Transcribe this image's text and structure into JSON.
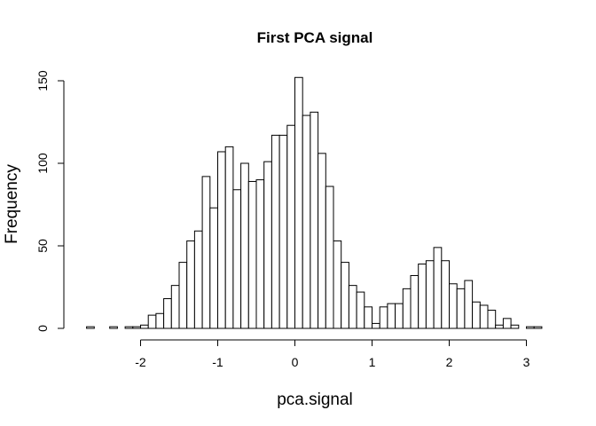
{
  "chart_data": {
    "type": "bar",
    "title": "First PCA signal",
    "xlabel": "pca.signal",
    "ylabel": "Frequency",
    "bin_width": 0.1,
    "x_start": -2.7,
    "x_ticks": [
      -2,
      -1,
      0,
      1,
      2,
      3
    ],
    "y_ticks": [
      0,
      50,
      100,
      150
    ],
    "xlim": [
      -2.7,
      3.2
    ],
    "ylim": [
      0,
      152
    ],
    "grid": false,
    "values": [
      1,
      0,
      0,
      1,
      0,
      1,
      1,
      2,
      8,
      9,
      18,
      26,
      40,
      53,
      59,
      92,
      73,
      107,
      110,
      84,
      100,
      89,
      90,
      101,
      117,
      117,
      123,
      152,
      129,
      131,
      106,
      86,
      53,
      40,
      26,
      22,
      13,
      3,
      13,
      15,
      15,
      24,
      32,
      39,
      41,
      49,
      41,
      27,
      24,
      29,
      16,
      14,
      11,
      2,
      6,
      2,
      0,
      1,
      1
    ],
    "series": [
      {
        "values": [
          1,
          0,
          0,
          1,
          0,
          1,
          1,
          2,
          8,
          9,
          18,
          26,
          40,
          53,
          59,
          92,
          73,
          107,
          110,
          84,
          100,
          89,
          90,
          101,
          117,
          117,
          123,
          152,
          129,
          131,
          106,
          86,
          53,
          40,
          26,
          22,
          13,
          3,
          13,
          15,
          15,
          24,
          32,
          39,
          41,
          49,
          41,
          27,
          24,
          29,
          16,
          14,
          11,
          2,
          6,
          2,
          0,
          1,
          1
        ]
      }
    ]
  }
}
